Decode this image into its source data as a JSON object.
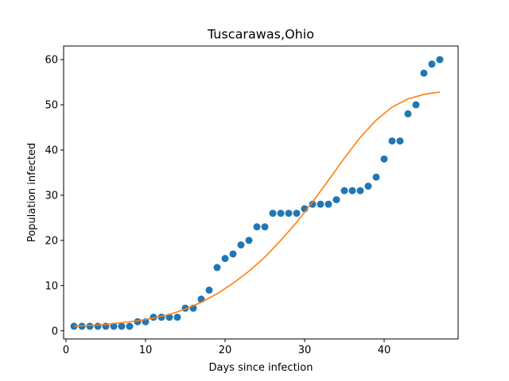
{
  "chart_data": {
    "type": "scatter",
    "title": "Tuscarawas,Ohio",
    "xlabel": "Days since infection",
    "ylabel": "Population infected",
    "xlim": [
      -0.3,
      49.3
    ],
    "ylim": [
      -1.8,
      63.0
    ],
    "xticks": [
      0,
      10,
      20,
      30,
      40
    ],
    "yticks": [
      0,
      10,
      20,
      30,
      40,
      50,
      60
    ],
    "grid": false,
    "series": [
      {
        "kind": "scatter",
        "color": "#1f77b4",
        "x": [
          1,
          2,
          3,
          4,
          5,
          6,
          7,
          8,
          9,
          10,
          11,
          12,
          13,
          14,
          15,
          16,
          17,
          18,
          19,
          20,
          21,
          22,
          23,
          24,
          25,
          26,
          27,
          28,
          29,
          30,
          31,
          32,
          33,
          34,
          35,
          36,
          37,
          38,
          39,
          40,
          41,
          42,
          43,
          44,
          45,
          46,
          47
        ],
        "y": [
          1,
          1,
          1,
          1,
          1,
          1,
          1,
          1,
          2,
          2,
          3,
          3,
          3,
          3,
          5,
          5,
          7,
          9,
          14,
          16,
          17,
          19,
          20,
          23,
          23,
          26,
          26,
          26,
          26,
          27,
          28,
          28,
          28,
          29,
          31,
          31,
          31,
          32,
          34,
          38,
          42,
          42,
          48,
          50,
          57,
          59,
          60
        ]
      },
      {
        "kind": "line",
        "color": "#ff7f0e",
        "x": [
          1,
          3,
          5,
          7,
          9,
          11,
          13,
          15,
          17,
          19,
          21,
          23,
          25,
          27,
          29,
          31,
          33,
          35,
          37,
          39,
          41,
          43,
          45,
          46,
          47
        ],
        "y": [
          1.0,
          1.2,
          1.4,
          1.8,
          2.2,
          2.8,
          3.6,
          4.8,
          6.3,
          8.2,
          10.5,
          13.2,
          16.3,
          20.0,
          24.0,
          28.5,
          33.3,
          38.2,
          42.8,
          46.6,
          49.5,
          51.3,
          52.3,
          52.6,
          52.8
        ]
      }
    ]
  }
}
